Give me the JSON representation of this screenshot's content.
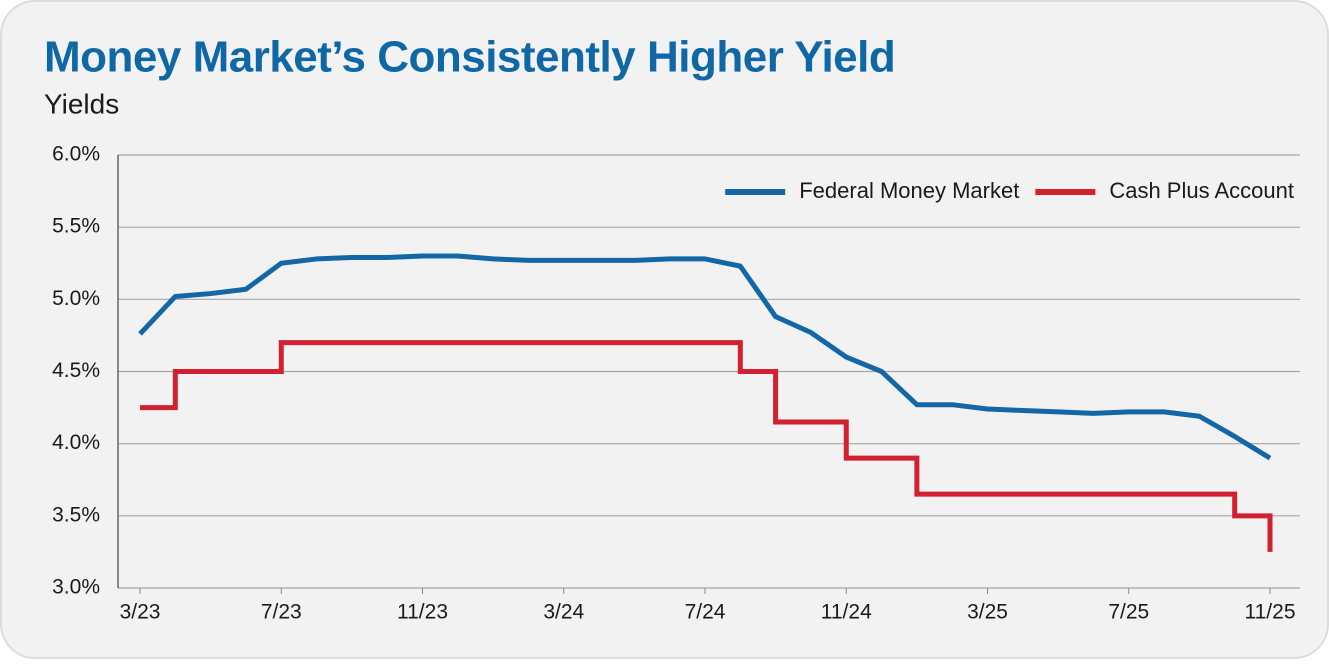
{
  "chart_data": {
    "type": "line",
    "title": "Money Market’s Consistently Higher Yield",
    "subtitle": "Yields",
    "x": [
      "2023-03",
      "2023-04",
      "2023-05",
      "2023-06",
      "2023-07",
      "2023-08",
      "2023-09",
      "2023-10",
      "2023-11",
      "2023-12",
      "2024-01",
      "2024-02",
      "2024-03",
      "2024-04",
      "2024-05",
      "2024-06",
      "2024-07",
      "2024-08",
      "2024-09",
      "2024-10",
      "2024-11",
      "2024-12",
      "2025-01",
      "2025-02",
      "2025-03",
      "2025-04",
      "2025-05",
      "2025-06",
      "2025-07",
      "2025-08",
      "2025-09",
      "2025-10",
      "2025-11"
    ],
    "series": [
      {
        "name": "Federal Money Market",
        "color": "#1467a6",
        "step": false,
        "values": [
          4.76,
          5.02,
          5.04,
          5.07,
          5.25,
          5.28,
          5.29,
          5.29,
          5.3,
          5.3,
          5.28,
          5.27,
          5.27,
          5.27,
          5.27,
          5.28,
          5.28,
          5.23,
          4.88,
          4.77,
          4.6,
          4.5,
          4.27,
          4.27,
          4.24,
          4.23,
          4.22,
          4.21,
          4.22,
          4.22,
          4.19,
          4.05,
          3.9
        ]
      },
      {
        "name": "Cash Plus Account",
        "color": "#d1202f",
        "step": true,
        "values": [
          4.25,
          4.5,
          4.5,
          4.5,
          4.7,
          4.7,
          4.7,
          4.7,
          4.7,
          4.7,
          4.7,
          4.7,
          4.7,
          4.7,
          4.7,
          4.7,
          4.7,
          4.5,
          4.15,
          4.15,
          3.9,
          3.9,
          3.65,
          3.65,
          3.65,
          3.65,
          3.65,
          3.65,
          3.65,
          3.65,
          3.65,
          3.5,
          3.25
        ]
      }
    ],
    "xlim": [
      "2023-03",
      "2025-11"
    ],
    "xticks": [
      {
        "value": "2023-03",
        "label": "3/23"
      },
      {
        "value": "2023-07",
        "label": "7/23"
      },
      {
        "value": "2023-11",
        "label": "11/23"
      },
      {
        "value": "2024-03",
        "label": "3/24"
      },
      {
        "value": "2024-07",
        "label": "7/24"
      },
      {
        "value": "2024-11",
        "label": "11/24"
      },
      {
        "value": "2025-03",
        "label": "3/25"
      },
      {
        "value": "2025-07",
        "label": "7/25"
      },
      {
        "value": "2025-11",
        "label": "11/25"
      }
    ],
    "ylim": [
      3,
      6
    ],
    "yticks": [
      {
        "value": 3,
        "label": "3.0%"
      },
      {
        "value": 3.5,
        "label": "3.5%"
      },
      {
        "value": 4,
        "label": "4.0%"
      },
      {
        "value": 4.5,
        "label": "4.5%"
      },
      {
        "value": 5,
        "label": "5.0%"
      },
      {
        "value": 5.5,
        "label": "5.5%"
      },
      {
        "value": 6,
        "label": "6.0%"
      }
    ],
    "grid": true,
    "legend": "top-right"
  }
}
